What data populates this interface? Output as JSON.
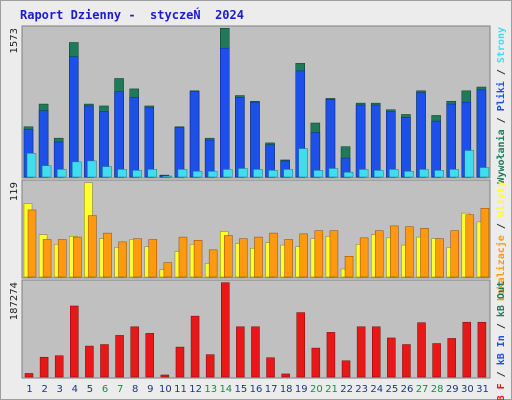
{
  "title": "Raport Dzienny -  styczeŃ  2024",
  "colors": {
    "page_bg": "#ececec",
    "panel_bg": "#c0c0c0",
    "hits": "#1f7a5a",
    "pages": "#1c50e8",
    "files": "#40dcf0",
    "visits": "#ffff30",
    "sites": "#ff9a10",
    "kb": "#e81818",
    "weekend_label": "#1a8a4a",
    "weekday_label": "#1a3a7a"
  },
  "legend": {
    "panel1": [
      "Wywołania",
      "/",
      "Pliki",
      "/",
      "Strony"
    ],
    "panel2": [
      "Lokalizacje",
      "/",
      "Wizyty"
    ],
    "panel3": [
      "kB F",
      "/",
      "kB In",
      "/",
      "kB Out"
    ]
  },
  "chart_data": [
    {
      "type": "bar",
      "ymax_label": "1573",
      "ylim": [
        0,
        1573
      ],
      "categories": [
        "1",
        "2",
        "3",
        "4",
        "5",
        "6",
        "7",
        "8",
        "9",
        "10",
        "11",
        "12",
        "13",
        "14",
        "15",
        "16",
        "17",
        "18",
        "19",
        "20",
        "21",
        "22",
        "23",
        "24",
        "25",
        "26",
        "27",
        "28",
        "29",
        "30",
        "31"
      ],
      "weekend_days": [
        "6",
        "7",
        "13",
        "14",
        "20",
        "21",
        "27",
        "28"
      ],
      "series": [
        {
          "name": "Wywołania",
          "values": [
            530,
            770,
            410,
            1420,
            770,
            750,
            1040,
            930,
            750,
            20,
            530,
            910,
            410,
            1570,
            860,
            800,
            360,
            180,
            1200,
            570,
            830,
            320,
            780,
            780,
            710,
            660,
            910,
            650,
            800,
            910,
            950
          ]
        },
        {
          "name": "Strony",
          "values": [
            500,
            700,
            370,
            1270,
            750,
            690,
            900,
            840,
            730,
            15,
            520,
            900,
            390,
            1360,
            840,
            790,
            340,
            170,
            1120,
            470,
            820,
            200,
            760,
            760,
            690,
            630,
            890,
            590,
            770,
            790,
            920
          ]
        },
        {
          "name": "Pliki",
          "values": [
            250,
            120,
            80,
            160,
            170,
            110,
            80,
            70,
            80,
            10,
            80,
            60,
            60,
            80,
            90,
            80,
            70,
            80,
            300,
            70,
            90,
            50,
            80,
            70,
            80,
            60,
            80,
            70,
            80,
            280,
            100
          ]
        }
      ]
    },
    {
      "type": "bar",
      "ymax_label": "119",
      "ylim": [
        0,
        119
      ],
      "categories": [
        "1",
        "2",
        "3",
        "4",
        "5",
        "6",
        "7",
        "8",
        "9",
        "10",
        "11",
        "12",
        "13",
        "14",
        "15",
        "16",
        "17",
        "18",
        "19",
        "20",
        "21",
        "22",
        "23",
        "24",
        "25",
        "26",
        "27",
        "28",
        "29",
        "30",
        "31"
      ],
      "series": [
        {
          "name": "Wizyty",
          "values": [
            92,
            53,
            41,
            51,
            118,
            48,
            37,
            47,
            38,
            9,
            32,
            41,
            17,
            57,
            42,
            36,
            43,
            40,
            38,
            48,
            51,
            10,
            41,
            53,
            49,
            40,
            50,
            48,
            37,
            80,
            69
          ]
        },
        {
          "name": "Lokalizacje",
          "values": [
            84,
            47,
            47,
            50,
            77,
            55,
            44,
            48,
            47,
            18,
            50,
            46,
            34,
            52,
            48,
            50,
            55,
            47,
            54,
            58,
            58,
            26,
            49,
            58,
            64,
            63,
            61,
            48,
            58,
            78,
            86
          ]
        }
      ]
    },
    {
      "type": "bar",
      "ymax_label": "187274",
      "ylim": [
        0,
        187274
      ],
      "categories": [
        "1",
        "2",
        "3",
        "4",
        "5",
        "6",
        "7",
        "8",
        "9",
        "10",
        "11",
        "12",
        "13",
        "14",
        "15",
        "16",
        "17",
        "18",
        "19",
        "20",
        "21",
        "22",
        "23",
        "24",
        "25",
        "26",
        "27",
        "28",
        "29",
        "30",
        "31"
      ],
      "series": [
        {
          "name": "kB F",
          "values": [
            7000,
            39000,
            42000,
            140000,
            61000,
            64000,
            82000,
            99000,
            86000,
            4000,
            59000,
            120000,
            44000,
            186000,
            99000,
            99000,
            38000,
            6000,
            127000,
            57000,
            88000,
            32000,
            99000,
            99000,
            77000,
            64000,
            107000,
            66000,
            76000,
            108000,
            108000
          ]
        }
      ]
    }
  ]
}
